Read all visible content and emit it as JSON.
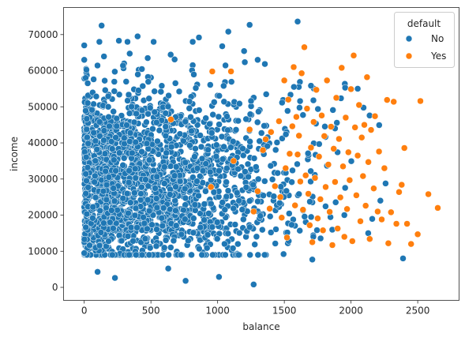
{
  "chart_data": {
    "type": "scatter",
    "title": "",
    "xlabel": "balance",
    "ylabel": "income",
    "xlim": [
      -155,
      2810
    ],
    "ylim": [
      -3600,
      77500
    ],
    "xticks": [
      0,
      500,
      1000,
      1500,
      2000,
      2500
    ],
    "yticks": [
      0,
      10000,
      20000,
      30000,
      40000,
      50000,
      60000,
      70000
    ],
    "grid": false,
    "legend": {
      "title": "default",
      "placement": "top-right"
    },
    "series": [
      {
        "name": "No",
        "color": "#1f77b4",
        "approx_count": 9667,
        "x_range": [
          0,
          2390
        ],
        "y_range": [
          770,
          73550
        ],
        "notes_points": [
          [
            0,
            9500
          ],
          [
            0,
            67000
          ],
          [
            0,
            63000
          ],
          [
            100,
            4300
          ],
          [
            130,
            72500
          ],
          [
            230,
            2600
          ],
          [
            260,
            68300
          ],
          [
            400,
            69500
          ],
          [
            520,
            68000
          ],
          [
            630,
            5200
          ],
          [
            760,
            1800
          ],
          [
            860,
            69200
          ],
          [
            1010,
            2900
          ],
          [
            1080,
            70800
          ],
          [
            1240,
            72700
          ],
          [
            1270,
            800
          ],
          [
            1300,
            63000
          ],
          [
            1600,
            73600
          ],
          [
            1710,
            7700
          ],
          [
            2390,
            8000
          ],
          [
            2050,
            55000
          ],
          [
            2220,
            24000
          ],
          [
            1880,
            44000
          ],
          [
            1950,
            20000
          ]
        ]
      },
      {
        "name": "Yes",
        "color": "#ff7f0e",
        "approx_count": 333,
        "x_range": [
          650,
          2650
        ],
        "y_range": [
          7000,
          66500
        ],
        "points": [
          [
            650,
            46500
          ],
          [
            950,
            27800
          ],
          [
            960,
            59800
          ],
          [
            1100,
            59800
          ],
          [
            1120,
            35000
          ],
          [
            1240,
            43700
          ],
          [
            1270,
            21000
          ],
          [
            1300,
            26600
          ],
          [
            1340,
            38000
          ],
          [
            1360,
            41000
          ],
          [
            1390,
            21800
          ],
          [
            1400,
            43000
          ],
          [
            1430,
            28000
          ],
          [
            1460,
            46000
          ],
          [
            1470,
            25000
          ],
          [
            1480,
            19300
          ],
          [
            1500,
            57300
          ],
          [
            1510,
            33000
          ],
          [
            1520,
            13800
          ],
          [
            1530,
            52000
          ],
          [
            1540,
            37000
          ],
          [
            1560,
            44600
          ],
          [
            1570,
            61000
          ],
          [
            1580,
            22700
          ],
          [
            1590,
            47200
          ],
          [
            1600,
            36800
          ],
          [
            1610,
            42000
          ],
          [
            1620,
            29300
          ],
          [
            1630,
            59300
          ],
          [
            1640,
            21500
          ],
          [
            1650,
            66500
          ],
          [
            1660,
            31000
          ],
          [
            1670,
            49500
          ],
          [
            1680,
            25900
          ],
          [
            1690,
            17200
          ],
          [
            1700,
            38700
          ],
          [
            1710,
            12500
          ],
          [
            1720,
            45800
          ],
          [
            1730,
            30300
          ],
          [
            1740,
            54700
          ],
          [
            1750,
            19100
          ],
          [
            1760,
            36200
          ],
          [
            1770,
            24400
          ],
          [
            1780,
            47600
          ],
          [
            1790,
            15800
          ],
          [
            1800,
            41900
          ],
          [
            1810,
            27800
          ],
          [
            1820,
            57300
          ],
          [
            1830,
            34000
          ],
          [
            1840,
            20900
          ],
          [
            1850,
            44500
          ],
          [
            1860,
            11700
          ],
          [
            1870,
            38400
          ],
          [
            1880,
            29200
          ],
          [
            1890,
            52500
          ],
          [
            1900,
            16300
          ],
          [
            1910,
            41100
          ],
          [
            1920,
            24900
          ],
          [
            1930,
            60800
          ],
          [
            1940,
            33500
          ],
          [
            1950,
            14000
          ],
          [
            1960,
            47000
          ],
          [
            1970,
            21700
          ],
          [
            1980,
            37400
          ],
          [
            1990,
            29700
          ],
          [
            2000,
            54900
          ],
          [
            2010,
            12800
          ],
          [
            2020,
            64200
          ],
          [
            2030,
            44300
          ],
          [
            2040,
            25500
          ],
          [
            2050,
            36500
          ],
          [
            2060,
            50500
          ],
          [
            2070,
            18300
          ],
          [
            2080,
            41500
          ],
          [
            2090,
            30800
          ],
          [
            2100,
            45000
          ],
          [
            2110,
            22600
          ],
          [
            2120,
            58200
          ],
          [
            2130,
            34700
          ],
          [
            2140,
            13400
          ],
          [
            2150,
            43600
          ],
          [
            2170,
            27400
          ],
          [
            2180,
            47400
          ],
          [
            2200,
            21000
          ],
          [
            2210,
            37600
          ],
          [
            2230,
            18800
          ],
          [
            2250,
            33000
          ],
          [
            2270,
            51900
          ],
          [
            2280,
            12200
          ],
          [
            2300,
            20800
          ],
          [
            2320,
            51400
          ],
          [
            2340,
            17600
          ],
          [
            2360,
            26400
          ],
          [
            2380,
            28400
          ],
          [
            2400,
            38600
          ],
          [
            2420,
            17600
          ],
          [
            2450,
            12000
          ],
          [
            2500,
            14700
          ],
          [
            2520,
            51600
          ],
          [
            2580,
            25800
          ],
          [
            2650,
            22000
          ]
        ]
      }
    ]
  }
}
